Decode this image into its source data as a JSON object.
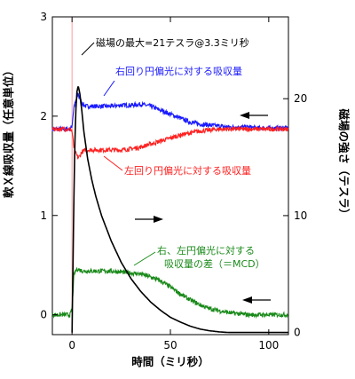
{
  "chart_data": {
    "type": "line",
    "xlabel": "時間（ミリ秒）",
    "ylabel_left": "軟Ｘ線吸収量（任意単位）",
    "ylabel_right": "磁場の強さ（テスラ）",
    "xlim": [
      -10,
      110
    ],
    "ylim_left": [
      -0.2,
      3.0
    ],
    "ylim_right": [
      -0.18,
      27.0
    ],
    "x_ticks": [
      "0",
      "50",
      "100"
    ],
    "y_ticks_left": [
      "0",
      "1",
      "2",
      "3"
    ],
    "y_ticks_right": [
      "0",
      "10",
      "20"
    ],
    "grid": false,
    "series": [
      {
        "name": "右回り円偏光に対する吸収量",
        "color": "#1a1aff",
        "axis": "left",
        "x": [
          -10,
          -1,
          0,
          1,
          2,
          3,
          4,
          5,
          7,
          10,
          15,
          20,
          25,
          30,
          35,
          40,
          45,
          50,
          55,
          60,
          65,
          70,
          75,
          80,
          85,
          90,
          95,
          100,
          105,
          110
        ],
        "y": [
          1.87,
          1.87,
          1.9,
          2.1,
          2.15,
          2.22,
          2.18,
          2.13,
          2.1,
          2.1,
          2.1,
          2.1,
          2.11,
          2.11,
          2.12,
          2.1,
          2.06,
          2.02,
          1.98,
          1.94,
          1.92,
          1.91,
          1.9,
          1.89,
          1.89,
          1.89,
          1.88,
          1.88,
          1.88,
          1.88
        ]
      },
      {
        "name": "左回り円偏光に対する吸収量",
        "color": "#ff2020",
        "axis": "left",
        "x": [
          -10,
          -1,
          0,
          1,
          2,
          3,
          4,
          5,
          7,
          10,
          15,
          20,
          25,
          30,
          35,
          40,
          45,
          50,
          55,
          60,
          65,
          70,
          75,
          80,
          85,
          90,
          95,
          100,
          105,
          110
        ],
        "y": [
          1.87,
          1.87,
          1.85,
          1.68,
          1.62,
          1.58,
          1.6,
          1.64,
          1.66,
          1.66,
          1.66,
          1.66,
          1.66,
          1.67,
          1.69,
          1.72,
          1.75,
          1.78,
          1.81,
          1.83,
          1.85,
          1.86,
          1.87,
          1.87,
          1.87,
          1.87,
          1.87,
          1.87,
          1.87,
          1.87
        ]
      },
      {
        "name": "右、左円偏光に対する吸収量の差（＝MCD）",
        "color": "#1a8a1a",
        "axis": "left",
        "x": [
          -10,
          -1,
          0,
          1,
          2,
          3,
          4,
          6,
          10,
          15,
          20,
          25,
          30,
          35,
          40,
          45,
          50,
          55,
          60,
          65,
          70,
          75,
          80,
          85,
          90,
          95,
          100,
          105,
          110
        ],
        "y": [
          0.0,
          0.0,
          0.05,
          0.4,
          0.45,
          0.46,
          0.45,
          0.44,
          0.44,
          0.44,
          0.44,
          0.43,
          0.42,
          0.41,
          0.38,
          0.34,
          0.28,
          0.21,
          0.15,
          0.1,
          0.06,
          0.04,
          0.02,
          0.01,
          0.0,
          0.0,
          0.0,
          0.0,
          0.0
        ]
      },
      {
        "name": "磁場",
        "color": "#000000",
        "axis": "right",
        "x": [
          0,
          0.5,
          1,
          1.5,
          2,
          2.5,
          3,
          3.3,
          4,
          5,
          6,
          8,
          10,
          12,
          15,
          20,
          25,
          30,
          35,
          40,
          45,
          50,
          55,
          60,
          65,
          70,
          75,
          80
        ],
        "y": [
          0,
          6,
          12,
          16.5,
          19.2,
          20.6,
          21,
          21,
          20.4,
          18.9,
          17.2,
          14.8,
          13.1,
          11.7,
          10.0,
          7.8,
          6.0,
          4.6,
          3.5,
          2.6,
          1.9,
          1.3,
          0.9,
          0.55,
          0.3,
          0.15,
          0.05,
          0.0
        ]
      }
    ],
    "annotations": {
      "peak": "磁場の最大=21テスラ@3.3ミリ秒",
      "right_label": "右回り円偏光に対する吸収量",
      "left_label": "左回り円偏光に対する吸収量",
      "mcd_line1": "右、左円偏光に対する",
      "mcd_line2": "吸収量の差（＝MCD）"
    },
    "colors": {
      "right": "#1a1aff",
      "left": "#ff2020",
      "mcd": "#1a8a1a",
      "field": "#000000",
      "marker": "#ff8080"
    }
  }
}
